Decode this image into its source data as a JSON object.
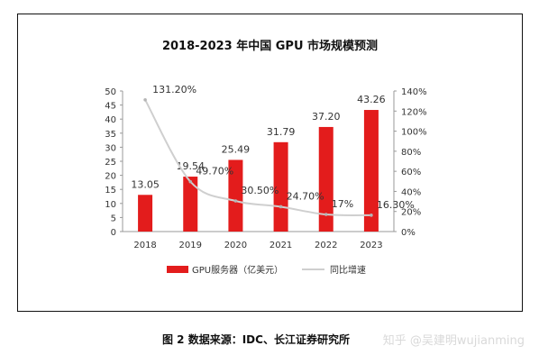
{
  "chart_data": {
    "type": "bar",
    "title": "2018-2023 年中国 GPU 市场规模预测",
    "categories": [
      "2018",
      "2019",
      "2020",
      "2021",
      "2022",
      "2023"
    ],
    "series": [
      {
        "name": "GPU服务器（亿美元）",
        "type": "bar",
        "axis": "left",
        "color": "#e31c1c",
        "values": [
          13.05,
          19.54,
          25.49,
          31.79,
          37.2,
          43.26
        ],
        "labels": [
          "13.05",
          "19.54",
          "25.49",
          "31.79",
          "37.20",
          "43.26"
        ]
      },
      {
        "name": "同比增速",
        "type": "line",
        "axis": "right",
        "color": "#cfcfcf",
        "values": [
          131.2,
          49.7,
          30.5,
          24.7,
          17.0,
          16.3
        ],
        "labels": [
          "131.20%",
          "49.70%",
          "30.50%",
          "24.70%",
          "17%",
          "16.30%"
        ]
      }
    ],
    "y_left": {
      "min": 0,
      "max": 50,
      "ticks": [
        "0",
        "5",
        "10",
        "15",
        "20",
        "25",
        "30",
        "35",
        "40",
        "45",
        "50"
      ]
    },
    "y_right": {
      "min": 0,
      "max": 140,
      "ticks": [
        "0%",
        "20%",
        "40%",
        "60%",
        "80%",
        "100%",
        "120%",
        "140%"
      ]
    },
    "grid": false,
    "legend": "bottom"
  },
  "caption": "图 2  数据来源：IDC、长江证券研究所",
  "watermark": "知乎 @吴建明wujianming"
}
